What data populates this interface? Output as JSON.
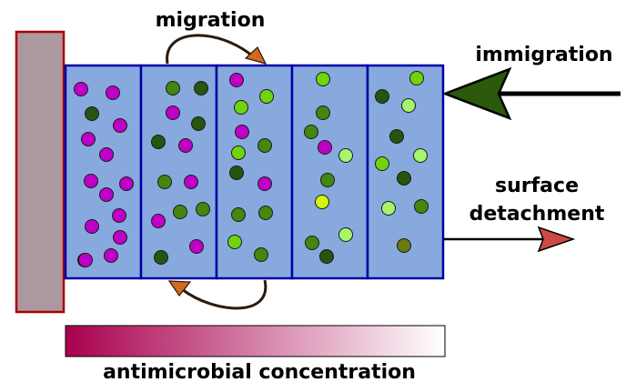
{
  "labels": {
    "migration": "migration",
    "immigration": "immigration",
    "surface_line1": "surface",
    "surface_line2": "detachment",
    "gradient": "antimicrobial concentration"
  },
  "colors": {
    "surface_block": "#ad98a0",
    "surface_block_border": "#aa0000",
    "compartment_fill": "#87a9dd",
    "compartment_border": "#0000a6",
    "cell_magenta": "#bf00c8",
    "cell_dark_green": "#26550f",
    "cell_mid_green": "#43870f",
    "cell_bright_green": "#6fd40c",
    "cell_light_green": "#a6f56c",
    "cell_yellow_green": "#d3f50c",
    "cell_olive": "#6a7a10",
    "immigration_arrow": "#2a5a0a",
    "detachment_arrow": "#cc4a44",
    "migration_arrowhead": "#d06a1e",
    "gradient_start": "#a8004e",
    "gradient_end": "#ffffff"
  },
  "cells": [
    {
      "compartment": 1,
      "type": "magenta"
    },
    {
      "compartment": 1,
      "type": "magenta"
    },
    {
      "compartment": 1,
      "type": "dark_green"
    },
    {
      "compartment": 1,
      "type": "magenta"
    },
    {
      "compartment": 1,
      "type": "magenta"
    },
    {
      "compartment": 1,
      "type": "magenta"
    },
    {
      "compartment": 1,
      "type": "magenta"
    },
    {
      "compartment": 1,
      "type": "magenta"
    },
    {
      "compartment": 1,
      "type": "magenta"
    },
    {
      "compartment": 1,
      "type": "magenta"
    },
    {
      "compartment": 1,
      "type": "magenta"
    },
    {
      "compartment": 1,
      "type": "magenta"
    },
    {
      "compartment": 1,
      "type": "dark_green"
    },
    {
      "compartment": 1,
      "type": "magenta"
    },
    {
      "compartment": 1,
      "type": "magenta"
    },
    {
      "compartment": 2,
      "type": "mid_green"
    },
    {
      "compartment": 2,
      "type": "dark_green"
    },
    {
      "compartment": 2,
      "type": "magenta"
    },
    {
      "compartment": 2,
      "type": "dark_green"
    },
    {
      "compartment": 2,
      "type": "dark_green"
    },
    {
      "compartment": 2,
      "type": "magenta"
    },
    {
      "compartment": 2,
      "type": "mid_green"
    },
    {
      "compartment": 2,
      "type": "magenta"
    },
    {
      "compartment": 2,
      "type": "magenta"
    },
    {
      "compartment": 2,
      "type": "mid_green"
    },
    {
      "compartment": 2,
      "type": "mid_green"
    },
    {
      "compartment": 2,
      "type": "magenta"
    },
    {
      "compartment": 2,
      "type": "dark_green"
    },
    {
      "compartment": 3,
      "type": "magenta"
    },
    {
      "compartment": 3,
      "type": "bright_green"
    },
    {
      "compartment": 3,
      "type": "bright_green"
    },
    {
      "compartment": 3,
      "type": "magenta"
    },
    {
      "compartment": 3,
      "type": "mid_green"
    },
    {
      "compartment": 3,
      "type": "bright_green"
    },
    {
      "compartment": 3,
      "type": "dark_green"
    },
    {
      "compartment": 3,
      "type": "magenta"
    },
    {
      "compartment": 3,
      "type": "mid_green"
    },
    {
      "compartment": 3,
      "type": "mid_green"
    },
    {
      "compartment": 3,
      "type": "bright_green"
    },
    {
      "compartment": 3,
      "type": "mid_green"
    },
    {
      "compartment": 4,
      "type": "bright_green"
    },
    {
      "compartment": 4,
      "type": "mid_green"
    },
    {
      "compartment": 4,
      "type": "mid_green"
    },
    {
      "compartment": 4,
      "type": "magenta"
    },
    {
      "compartment": 4,
      "type": "light_green"
    },
    {
      "compartment": 4,
      "type": "mid_green"
    },
    {
      "compartment": 4,
      "type": "yellow_green"
    },
    {
      "compartment": 4,
      "type": "light_green"
    },
    {
      "compartment": 4,
      "type": "mid_green"
    },
    {
      "compartment": 4,
      "type": "dark_green"
    },
    {
      "compartment": 5,
      "type": "bright_green"
    },
    {
      "compartment": 5,
      "type": "dark_green"
    },
    {
      "compartment": 5,
      "type": "light_green"
    },
    {
      "compartment": 5,
      "type": "dark_green"
    },
    {
      "compartment": 5,
      "type": "light_green"
    },
    {
      "compartment": 5,
      "type": "bright_green"
    },
    {
      "compartment": 5,
      "type": "dark_green"
    },
    {
      "compartment": 5,
      "type": "light_green"
    },
    {
      "compartment": 5,
      "type": "mid_green"
    },
    {
      "compartment": 5,
      "type": "olive"
    }
  ]
}
